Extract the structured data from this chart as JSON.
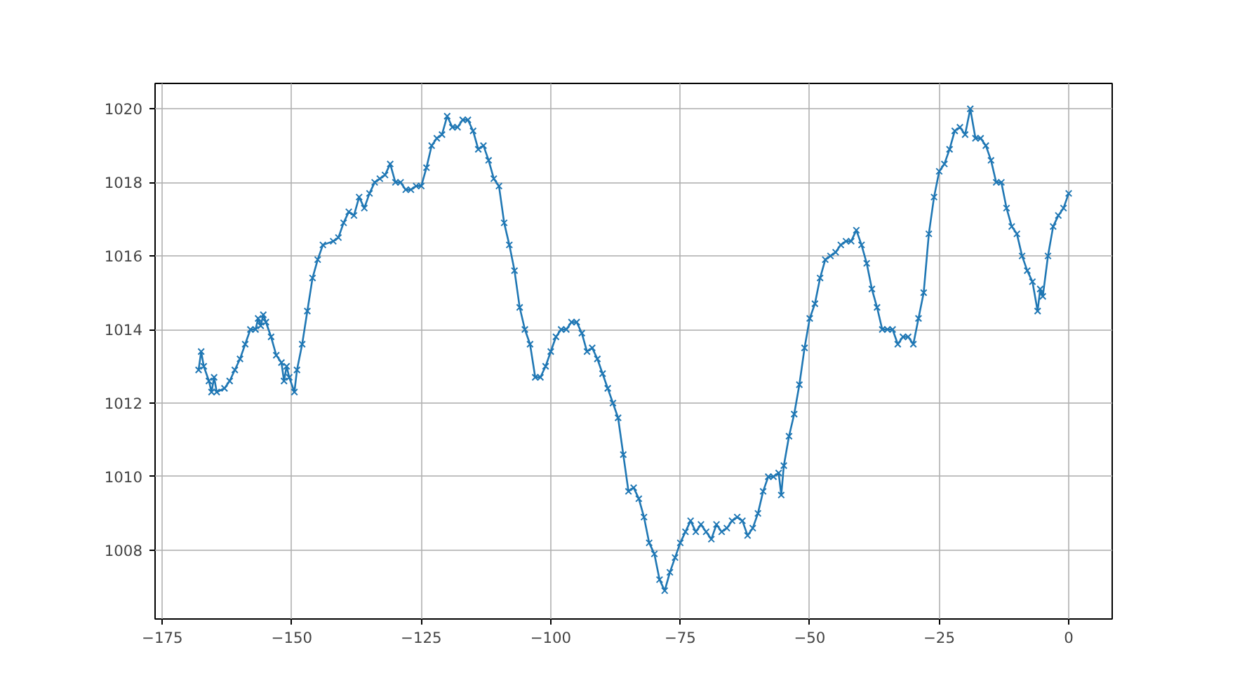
{
  "chart_data": {
    "type": "line",
    "marker": "cross",
    "line_style": "solid",
    "grid": true,
    "xlim": [
      -176.4,
      8.4
    ],
    "ylim": [
      1006.13,
      1020.69
    ],
    "xticks": [
      {
        "value": -175,
        "label": "−175"
      },
      {
        "value": -150,
        "label": "−150"
      },
      {
        "value": -125,
        "label": "−125"
      },
      {
        "value": -100,
        "label": "−100"
      },
      {
        "value": -75,
        "label": "−75"
      },
      {
        "value": -50,
        "label": "−50"
      },
      {
        "value": -25,
        "label": "−25"
      },
      0
    ],
    "yticks": [
      1008,
      1010,
      1012,
      1014,
      1016,
      1018,
      1020
    ],
    "series": [
      {
        "color": "#1f77b4",
        "x": [
          -168,
          -167.5,
          -167,
          -166,
          -165.5,
          -165,
          -164.5,
          -163,
          -162,
          -161,
          -160,
          -159,
          -158,
          -157,
          -156.5,
          -156,
          -155.5,
          -155,
          -154,
          -153,
          -152,
          -151.5,
          -151,
          -150.5,
          -149.5,
          -149,
          -148,
          -147,
          -146,
          -145,
          -144,
          -142,
          -141,
          -140,
          -139,
          -138,
          -137,
          -136,
          -135,
          -134,
          -133,
          -132,
          -131,
          -130,
          -129,
          -128,
          -127,
          -126,
          -125,
          -124,
          -123,
          -122,
          -121,
          -120,
          -119,
          -118,
          -117,
          -116,
          -115,
          -114,
          -113,
          -112,
          -111,
          -110,
          -109,
          -108,
          -107,
          -106,
          -105,
          -104,
          -103,
          -102,
          -101,
          -100,
          -99,
          -98,
          -97,
          -96,
          -95,
          -94,
          -93,
          -92,
          -91,
          -90,
          -89,
          -88,
          -87,
          -86,
          -85,
          -84,
          -83,
          -82,
          -81,
          -80,
          -79,
          -78,
          -77,
          -76,
          -75,
          -74,
          -73,
          -72,
          -71,
          -70,
          -69,
          -68,
          -67,
          -66,
          -65,
          -64,
          -63,
          -62,
          -61,
          -60,
          -59,
          -58,
          -57,
          -56,
          -55.5,
          -55,
          -54,
          -53,
          -52,
          -51,
          -50,
          -49,
          -48,
          -47,
          -46,
          -45,
          -44,
          -43,
          -42,
          -41,
          -40,
          -39,
          -38,
          -37,
          -36,
          -35,
          -34,
          -33,
          -32,
          -31,
          -30,
          -29,
          -28,
          -27,
          -26,
          -25,
          -24,
          -23,
          -22,
          -21,
          -20,
          -19,
          -18,
          -17,
          -16,
          -15,
          -14,
          -13,
          -12,
          -11,
          -10,
          -9,
          -8,
          -7,
          -6,
          -5.5,
          -5,
          -4,
          -3,
          -2,
          -1,
          0
        ],
        "values": [
          1012.9,
          1013.4,
          1013.0,
          1012.6,
          1012.3,
          1012.7,
          1012.3,
          1012.4,
          1012.6,
          1012.9,
          1013.2,
          1013.6,
          1014.0,
          1014.0,
          1014.3,
          1014.1,
          1014.4,
          1014.2,
          1013.8,
          1013.3,
          1013.1,
          1012.6,
          1013.0,
          1012.7,
          1012.3,
          1012.9,
          1013.6,
          1014.5,
          1015.4,
          1015.9,
          1016.3,
          1016.4,
          1016.5,
          1016.9,
          1017.2,
          1017.1,
          1017.6,
          1017.3,
          1017.7,
          1018.0,
          1018.1,
          1018.2,
          1018.5,
          1018.0,
          1018.0,
          1017.8,
          1017.8,
          1017.9,
          1017.9,
          1018.4,
          1019.0,
          1019.2,
          1019.3,
          1019.8,
          1019.5,
          1019.5,
          1019.7,
          1019.7,
          1019.4,
          1018.9,
          1019.0,
          1018.6,
          1018.1,
          1017.9,
          1016.9,
          1016.3,
          1015.6,
          1014.6,
          1014.0,
          1013.6,
          1012.7,
          1012.7,
          1013.0,
          1013.4,
          1013.8,
          1014.0,
          1014.0,
          1014.2,
          1014.2,
          1013.9,
          1013.4,
          1013.5,
          1013.2,
          1012.8,
          1012.4,
          1012.0,
          1011.6,
          1010.6,
          1009.6,
          1009.7,
          1009.4,
          1008.9,
          1008.2,
          1007.9,
          1007.2,
          1006.9,
          1007.4,
          1007.8,
          1008.2,
          1008.5,
          1008.8,
          1008.5,
          1008.7,
          1008.5,
          1008.3,
          1008.7,
          1008.5,
          1008.6,
          1008.8,
          1008.9,
          1008.8,
          1008.4,
          1008.6,
          1009.0,
          1009.6,
          1010.0,
          1010.0,
          1010.1,
          1009.5,
          1010.3,
          1011.1,
          1011.7,
          1012.5,
          1013.5,
          1014.3,
          1014.7,
          1015.4,
          1015.9,
          1016.0,
          1016.1,
          1016.3,
          1016.4,
          1016.4,
          1016.7,
          1016.3,
          1015.8,
          1015.1,
          1014.6,
          1014.0,
          1014.0,
          1014.0,
          1013.6,
          1013.8,
          1013.8,
          1013.6,
          1014.3,
          1015.0,
          1016.6,
          1017.6,
          1018.3,
          1018.5,
          1018.9,
          1019.4,
          1019.5,
          1019.3,
          1020.0,
          1019.2,
          1019.2,
          1019.0,
          1018.6,
          1018.0,
          1018.0,
          1017.3,
          1016.8,
          1016.6,
          1016.0,
          1015.6,
          1015.3,
          1014.5,
          1015.1,
          1014.9,
          1016.0,
          1016.8,
          1017.1,
          1017.3,
          1017.7
        ]
      }
    ]
  }
}
